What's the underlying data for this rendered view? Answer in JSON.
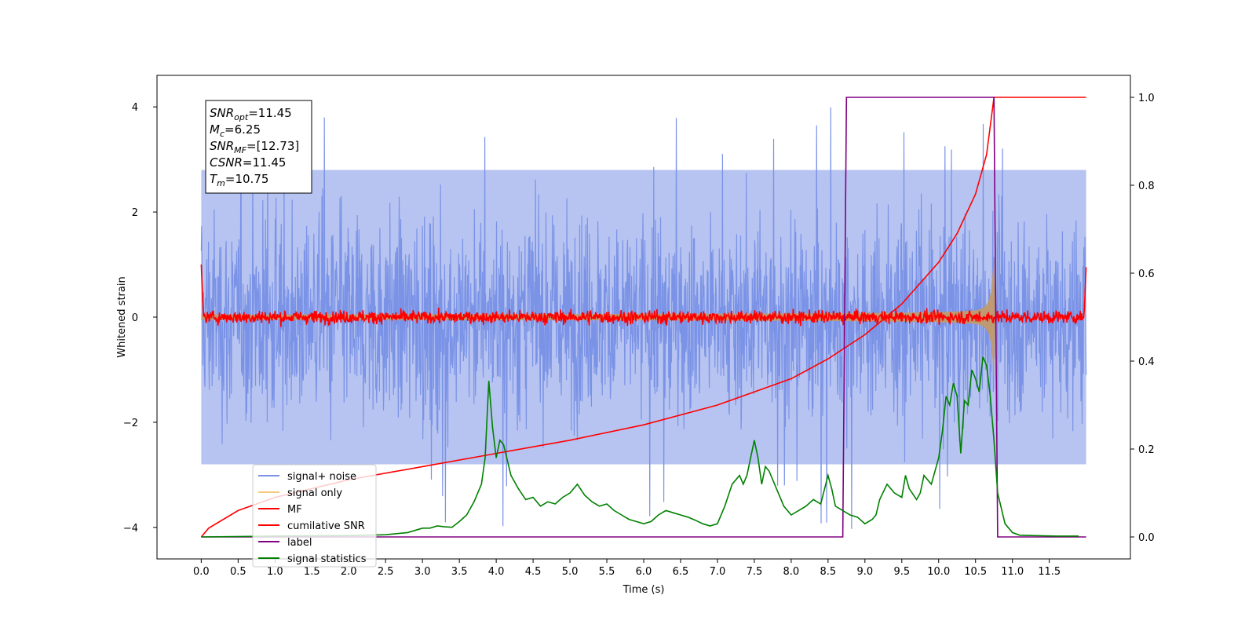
{
  "chart_data": {
    "type": "line",
    "xlabel": "Time (s)",
    "ylabel": "Whitened strain",
    "xlim": [
      -0.6,
      12.6
    ],
    "ylim_left": [
      -4.6,
      4.6
    ],
    "ylim_right": [
      -0.05,
      1.05
    ],
    "x_ticks": [
      "0.0",
      "0.5",
      "1.0",
      "1.5",
      "2.0",
      "2.5",
      "3.0",
      "3.5",
      "4.0",
      "4.5",
      "5.0",
      "5.5",
      "6.0",
      "6.5",
      "7.0",
      "7.5",
      "8.0",
      "8.5",
      "9.0",
      "9.5",
      "10.0",
      "10.5",
      "11.0",
      "11.5"
    ],
    "y_ticks_left": [
      "4",
      "2",
      "0",
      "−2",
      "−4"
    ],
    "y_ticks_right": [
      "1.0",
      "0.8",
      "0.6",
      "0.4",
      "0.2",
      "0.0"
    ],
    "info_box": [
      {
        "symbol": "SNR",
        "sub": "opt",
        "value": "=11.45"
      },
      {
        "symbol": "M",
        "sub": "c",
        "value": "=6.25"
      },
      {
        "symbol": "SNR",
        "sub": "MF",
        "value": "=[12.73]"
      },
      {
        "symbol": "CSNR",
        "sub": "",
        "value": "=11.45"
      },
      {
        "symbol": "T",
        "sub": "m",
        "value": "=10.75"
      }
    ],
    "legend_position": "lower-left",
    "legend": [
      {
        "label": "signal+ noise",
        "color": "#7B93E6"
      },
      {
        "label": "signal only",
        "color": "#F5C97A"
      },
      {
        "label": "MF",
        "color": "#FF0000"
      },
      {
        "label": "cumilative SNR",
        "color": "#FF0000"
      },
      {
        "label": "label",
        "color": "#800080"
      },
      {
        "label": "signal statistics",
        "color": "#008000"
      }
    ],
    "series": [
      {
        "name": "signal+ noise",
        "axis": "left",
        "color": "#7B93E6",
        "t_start": 0.0,
        "t_end": 12.0,
        "envelope_upper": 2.8,
        "envelope_lower": -2.8,
        "peak_max": 4.15,
        "peak_min": -4.15
      },
      {
        "name": "signal only",
        "axis": "left",
        "color": "#C19A6B",
        "t_start": 0.0,
        "t_end": 10.75,
        "chirp_amplitude_start": 0.05,
        "chirp_amplitude_end": 1.15
      },
      {
        "name": "MF",
        "axis": "left",
        "color": "#FF0000",
        "t_start": 0.0,
        "t_end": 12.0,
        "edge_value_start": 1.0,
        "edge_value_end": 0.95,
        "noise_amplitude": 0.1
      },
      {
        "name": "cumilative SNR",
        "axis": "right",
        "color": "#FF0000",
        "x": [
          0.0,
          0.1,
          0.5,
          1.0,
          2.0,
          3.0,
          4.0,
          5.0,
          6.0,
          7.0,
          7.5,
          8.0,
          8.5,
          9.0,
          9.5,
          10.0,
          10.25,
          10.5,
          10.65,
          10.75,
          12.0
        ],
        "y": [
          0.0,
          0.02,
          0.06,
          0.09,
          0.13,
          0.16,
          0.19,
          0.22,
          0.255,
          0.3,
          0.33,
          0.36,
          0.405,
          0.46,
          0.53,
          0.625,
          0.69,
          0.78,
          0.87,
          1.0,
          1.0
        ]
      },
      {
        "name": "label",
        "axis": "right",
        "color": "#800080",
        "x": [
          0.0,
          8.7,
          8.75,
          10.75,
          10.8,
          12.0
        ],
        "y": [
          0.0,
          0.0,
          1.0,
          1.0,
          0.0,
          0.0
        ]
      },
      {
        "name": "signal statistics",
        "axis": "right",
        "color": "#008000",
        "x": [
          0.0,
          1.0,
          2.0,
          2.5,
          2.8,
          3.0,
          3.1,
          3.2,
          3.3,
          3.4,
          3.5,
          3.6,
          3.7,
          3.8,
          3.85,
          3.9,
          3.95,
          4.0,
          4.05,
          4.1,
          4.2,
          4.3,
          4.4,
          4.5,
          4.6,
          4.7,
          4.8,
          4.9,
          5.0,
          5.1,
          5.2,
          5.3,
          5.4,
          5.5,
          5.6,
          5.7,
          5.8,
          5.9,
          6.0,
          6.1,
          6.2,
          6.3,
          6.4,
          6.5,
          6.6,
          6.7,
          6.8,
          6.9,
          7.0,
          7.1,
          7.2,
          7.3,
          7.35,
          7.4,
          7.5,
          7.55,
          7.6,
          7.65,
          7.7,
          7.8,
          7.9,
          8.0,
          8.1,
          8.2,
          8.3,
          8.4,
          8.5,
          8.55,
          8.6,
          8.7,
          8.8,
          8.9,
          9.0,
          9.1,
          9.15,
          9.2,
          9.3,
          9.4,
          9.5,
          9.55,
          9.6,
          9.7,
          9.75,
          9.8,
          9.9,
          10.0,
          10.05,
          10.1,
          10.15,
          10.2,
          10.25,
          10.3,
          10.35,
          10.4,
          10.45,
          10.5,
          10.55,
          10.6,
          10.65,
          10.7,
          10.75,
          10.8,
          10.9,
          11.0,
          11.1,
          11.3,
          11.6,
          11.9
        ],
        "y": [
          0.0,
          0.002,
          0.003,
          0.005,
          0.01,
          0.02,
          0.02,
          0.025,
          0.023,
          0.022,
          0.035,
          0.05,
          0.08,
          0.12,
          0.18,
          0.355,
          0.25,
          0.18,
          0.22,
          0.21,
          0.14,
          0.11,
          0.085,
          0.09,
          0.07,
          0.08,
          0.075,
          0.09,
          0.1,
          0.12,
          0.095,
          0.08,
          0.07,
          0.075,
          0.06,
          0.05,
          0.04,
          0.035,
          0.03,
          0.035,
          0.05,
          0.06,
          0.055,
          0.05,
          0.045,
          0.038,
          0.03,
          0.025,
          0.03,
          0.07,
          0.12,
          0.14,
          0.12,
          0.14,
          0.22,
          0.18,
          0.12,
          0.16,
          0.15,
          0.11,
          0.07,
          0.05,
          0.06,
          0.07,
          0.085,
          0.075,
          0.14,
          0.11,
          0.07,
          0.06,
          0.05,
          0.045,
          0.03,
          0.04,
          0.05,
          0.085,
          0.12,
          0.1,
          0.09,
          0.14,
          0.11,
          0.085,
          0.1,
          0.14,
          0.12,
          0.18,
          0.24,
          0.32,
          0.3,
          0.35,
          0.32,
          0.19,
          0.31,
          0.3,
          0.38,
          0.36,
          0.33,
          0.41,
          0.39,
          0.32,
          0.22,
          0.1,
          0.03,
          0.01,
          0.004,
          0.003,
          0.002,
          0.002
        ]
      }
    ]
  }
}
